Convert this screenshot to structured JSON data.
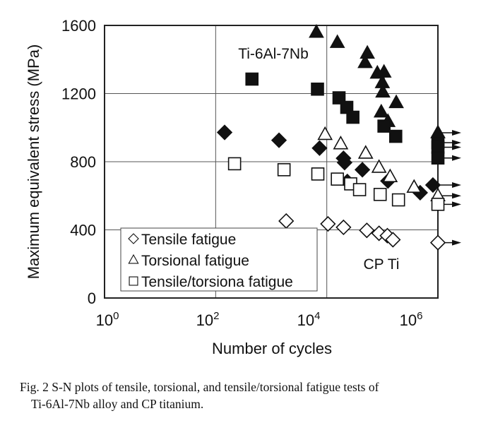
{
  "chart_data": {
    "type": "scatter",
    "xlabel": "Number of cycles",
    "ylabel": "Maximum equivalent stress (MPa)",
    "xscale": "log",
    "xlim": [
      1,
      3000000
    ],
    "ylim": [
      0,
      1600
    ],
    "x_ticks": [
      {
        "base": "10",
        "exp": "0",
        "value": 1
      },
      {
        "base": "10",
        "exp": "2",
        "value": 100
      },
      {
        "base": "10",
        "exp": "4",
        "value": 10000
      },
      {
        "base": "10",
        "exp": "6",
        "value": 1000000
      }
    ],
    "y_ticks": [
      0,
      400,
      800,
      1200,
      1600
    ],
    "grid": true,
    "legend_position": "bottom-left",
    "legend": [
      "Tensile fatigue",
      "Torsional fatigue",
      "Tensile/torsiona fatigue"
    ],
    "annotations": [
      "Ti-6Al-7Nb",
      "CP Ti"
    ],
    "series": [
      {
        "material": "Ti-6Al-7Nb",
        "test": "Torsional fatigue",
        "marker": "triangle",
        "filled": true,
        "points": [
          [
            6500,
            1560
          ],
          [
            15500,
            1500
          ],
          [
            53700,
            1437
          ],
          [
            49000,
            1382
          ],
          [
            81300,
            1320
          ],
          [
            107000,
            1326
          ],
          [
            100000,
            1264
          ],
          [
            102000,
            1209
          ],
          [
            178000,
            1147
          ],
          [
            95500,
            1092
          ],
          [
            126000,
            1036
          ]
        ],
        "runouts": [
          [
            1000000,
            970
          ]
        ]
      },
      {
        "material": "Ti-6Al-7Nb",
        "test": "Tensile/torsiona fatigue",
        "marker": "square",
        "filled": true,
        "points": [
          [
            450,
            1285
          ],
          [
            6800,
            1226
          ],
          [
            16600,
            1175
          ],
          [
            22900,
            1119
          ],
          [
            29500,
            1061
          ],
          [
            107000,
            1009
          ],
          [
            174000,
            949
          ]
        ],
        "runouts": [
          [
            1000000,
            912
          ],
          [
            1000000,
            885
          ],
          [
            1000000,
            822
          ]
        ]
      },
      {
        "material": "Ti-6Al-7Nb",
        "test": "Tensile fatigue",
        "marker": "diamond",
        "filled": true,
        "points": [
          [
            145,
            972
          ],
          [
            1380,
            926
          ],
          [
            7400,
            880
          ],
          [
            20000,
            820
          ],
          [
            20900,
            795
          ],
          [
            43700,
            753
          ],
          [
            23400,
            684
          ],
          [
            126000,
            687
          ],
          [
            479000,
            618
          ]
        ],
        "runouts": [
          [
            813000,
            663
          ]
        ]
      },
      {
        "material": "CP Ti",
        "test": "Torsional fatigue",
        "marker": "triangle",
        "filled": false,
        "points": [
          [
            9300,
            960
          ],
          [
            17800,
            905
          ],
          [
            50100,
            850
          ],
          [
            87100,
            767
          ],
          [
            138000,
            712
          ],
          [
            372000,
            650
          ]
        ],
        "runouts": [
          [
            1000000,
            600
          ]
        ]
      },
      {
        "material": "CP Ti",
        "test": "Tensile/torsiona fatigue",
        "marker": "square",
        "filled": false,
        "points": [
          [
            219,
            788
          ],
          [
            1700,
            753
          ],
          [
            6900,
            728
          ],
          [
            15500,
            698
          ],
          [
            26900,
            670
          ],
          [
            38900,
            636
          ],
          [
            91200,
            608
          ],
          [
            195000,
            576
          ]
        ],
        "runouts": [
          [
            1000000,
            550
          ]
        ]
      },
      {
        "material": "CP Ti",
        "test": "Tensile fatigue",
        "marker": "diamond",
        "filled": false,
        "points": [
          [
            1860,
            452
          ],
          [
            10500,
            435
          ],
          [
            20000,
            415
          ],
          [
            52500,
            397
          ],
          [
            87100,
            380
          ],
          [
            123000,
            366
          ],
          [
            155000,
            342
          ]
        ],
        "runouts": [
          [
            1000000,
            325
          ]
        ]
      }
    ]
  },
  "caption": {
    "line1": "Fig.  2    S-N plots of tensile, torsional, and tensile/torsional fatigue tests of",
    "line2": "Ti-6Al-7Nb alloy and CP titanium."
  }
}
